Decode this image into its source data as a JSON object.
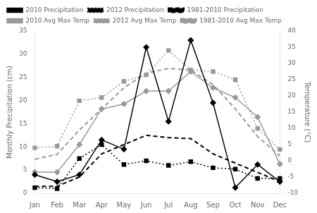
{
  "chart_data": {
    "type": "line",
    "categories": [
      "Jan",
      "Feb",
      "Mar",
      "Apr",
      "May",
      "Jun",
      "Jul",
      "Aug",
      "Sep",
      "Oct",
      "Nov",
      "Dec"
    ],
    "series": [
      {
        "name": "2010 Precipitation",
        "color": "#000000",
        "marker": "diamond",
        "line_style": "solid",
        "axis": "y",
        "values": [
          4.0,
          2.5,
          4.0,
          11.5,
          9.5,
          31.5,
          15.5,
          33.0,
          19.5,
          1.2,
          6.2,
          2.5
        ]
      },
      {
        "name": "2012 Precipitation",
        "color": "#000000",
        "marker": "square",
        "line_style": "dotted",
        "axis": "y",
        "values": [
          1.2,
          1.0,
          7.5,
          10.5,
          6.2,
          7.0,
          6.0,
          6.8,
          5.5,
          5.2,
          3.2,
          3.2
        ]
      },
      {
        "name": "1981-2010 Precipitation",
        "color": "#000000",
        "marker": "none",
        "line_style": "dashed",
        "axis": "y",
        "values": [
          1.5,
          1.5,
          3.5,
          8.5,
          10.5,
          12.5,
          12.0,
          11.8,
          8.5,
          6.5,
          4.5,
          2.5
        ]
      },
      {
        "name": "2010 Avg Max Temp",
        "color": "#999999",
        "marker": "diamond",
        "line_style": "solid",
        "axis": "y2",
        "values": [
          -3.5,
          -3.5,
          5.0,
          16.0,
          17.5,
          21.5,
          21.5,
          27.5,
          22.5,
          19.5,
          13.5,
          -1.0
        ]
      },
      {
        "name": "2012 Avg Max Temp",
        "color": "#999999",
        "marker": "square",
        "line_style": "dotted",
        "axis": "y2",
        "values": [
          4.0,
          4.5,
          18.5,
          19.5,
          24.5,
          26.5,
          34.0,
          28.0,
          27.5,
          25.0,
          10.0,
          3.5
        ]
      },
      {
        "name": "1981-2010 Avg Max Temp",
        "color": "#999999",
        "marker": "none",
        "line_style": "dashed",
        "axis": "y2",
        "values": [
          0.5,
          2.0,
          9.5,
          16.0,
          22.5,
          27.0,
          28.5,
          28.0,
          23.5,
          16.0,
          7.5,
          1.5
        ]
      }
    ],
    "ylabel": "Monthly Precipitation (cm)",
    "y2label": "Temperature (°C)",
    "ylim": [
      0,
      35
    ],
    "yticks": [
      0,
      5,
      10,
      15,
      20,
      25,
      30,
      35
    ],
    "y2lim": [
      -10,
      40
    ],
    "y2ticks": [
      -10,
      -5,
      0,
      5,
      10,
      15,
      20,
      25,
      30,
      35,
      40
    ],
    "grid": false,
    "legend": "upper left"
  }
}
